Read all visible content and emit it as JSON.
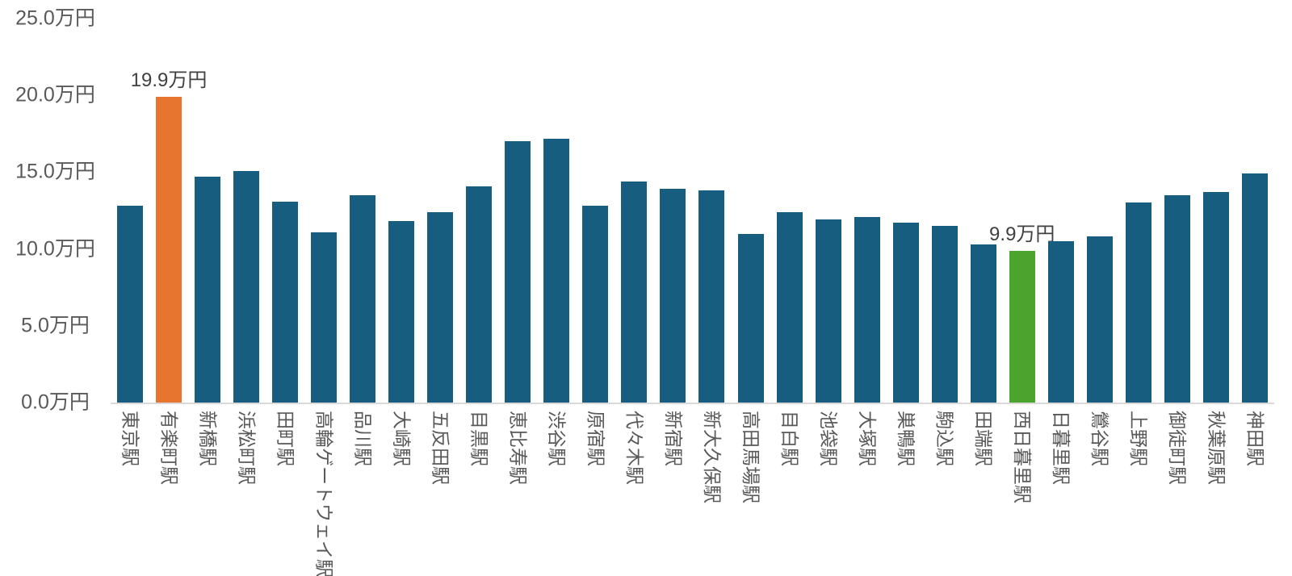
{
  "chart_data": {
    "type": "bar",
    "value_unit": "万円",
    "y_axis": {
      "ticks": [
        "0.0万円",
        "5.0万円",
        "10.0万円",
        "15.0万円",
        "20.0万円",
        "25.0万円"
      ],
      "tick_values": [
        0,
        5,
        10,
        15,
        20,
        25
      ],
      "max": 25,
      "grid": "off"
    },
    "categories": [
      "東京駅",
      "有楽町駅",
      "新橋駅",
      "浜松町駅",
      "田町駅",
      "高輪ゲートウェイ駅",
      "品川駅",
      "大崎駅",
      "五反田駅",
      "目黒駅",
      "恵比寿駅",
      "渋谷駅",
      "原宿駅",
      "代々木駅",
      "新宿駅",
      "新大久保駅",
      "高田馬場駅",
      "目白駅",
      "池袋駅",
      "大塚駅",
      "巣鴨駅",
      "駒込駅",
      "田端駅",
      "西日暮里駅",
      "日暮里駅",
      "鶯谷駅",
      "上野駅",
      "御徒町駅",
      "秋葉原駅",
      "神田駅"
    ],
    "values": [
      12.8,
      19.9,
      14.7,
      15.1,
      13.1,
      11.1,
      13.5,
      11.8,
      12.4,
      14.1,
      17.0,
      17.2,
      12.8,
      14.4,
      13.9,
      13.8,
      11.0,
      12.4,
      11.9,
      12.1,
      11.7,
      11.5,
      10.3,
      9.9,
      10.5,
      10.8,
      13.0,
      13.5,
      13.7,
      14.9
    ],
    "highlights": [
      {
        "index": 1,
        "label": "19.9万円",
        "color": "#E8752F"
      },
      {
        "index": 23,
        "label": "9.9万円",
        "color": "#4CA32D"
      }
    ],
    "colors": {
      "bar_default": "#175D80",
      "bar_max_highlight": "#E8752F",
      "bar_min_highlight": "#4CA32D",
      "axis_text": "#595959",
      "annotation_text": "#404040",
      "axis_line": "#D9D9D9"
    },
    "legend": "none"
  }
}
